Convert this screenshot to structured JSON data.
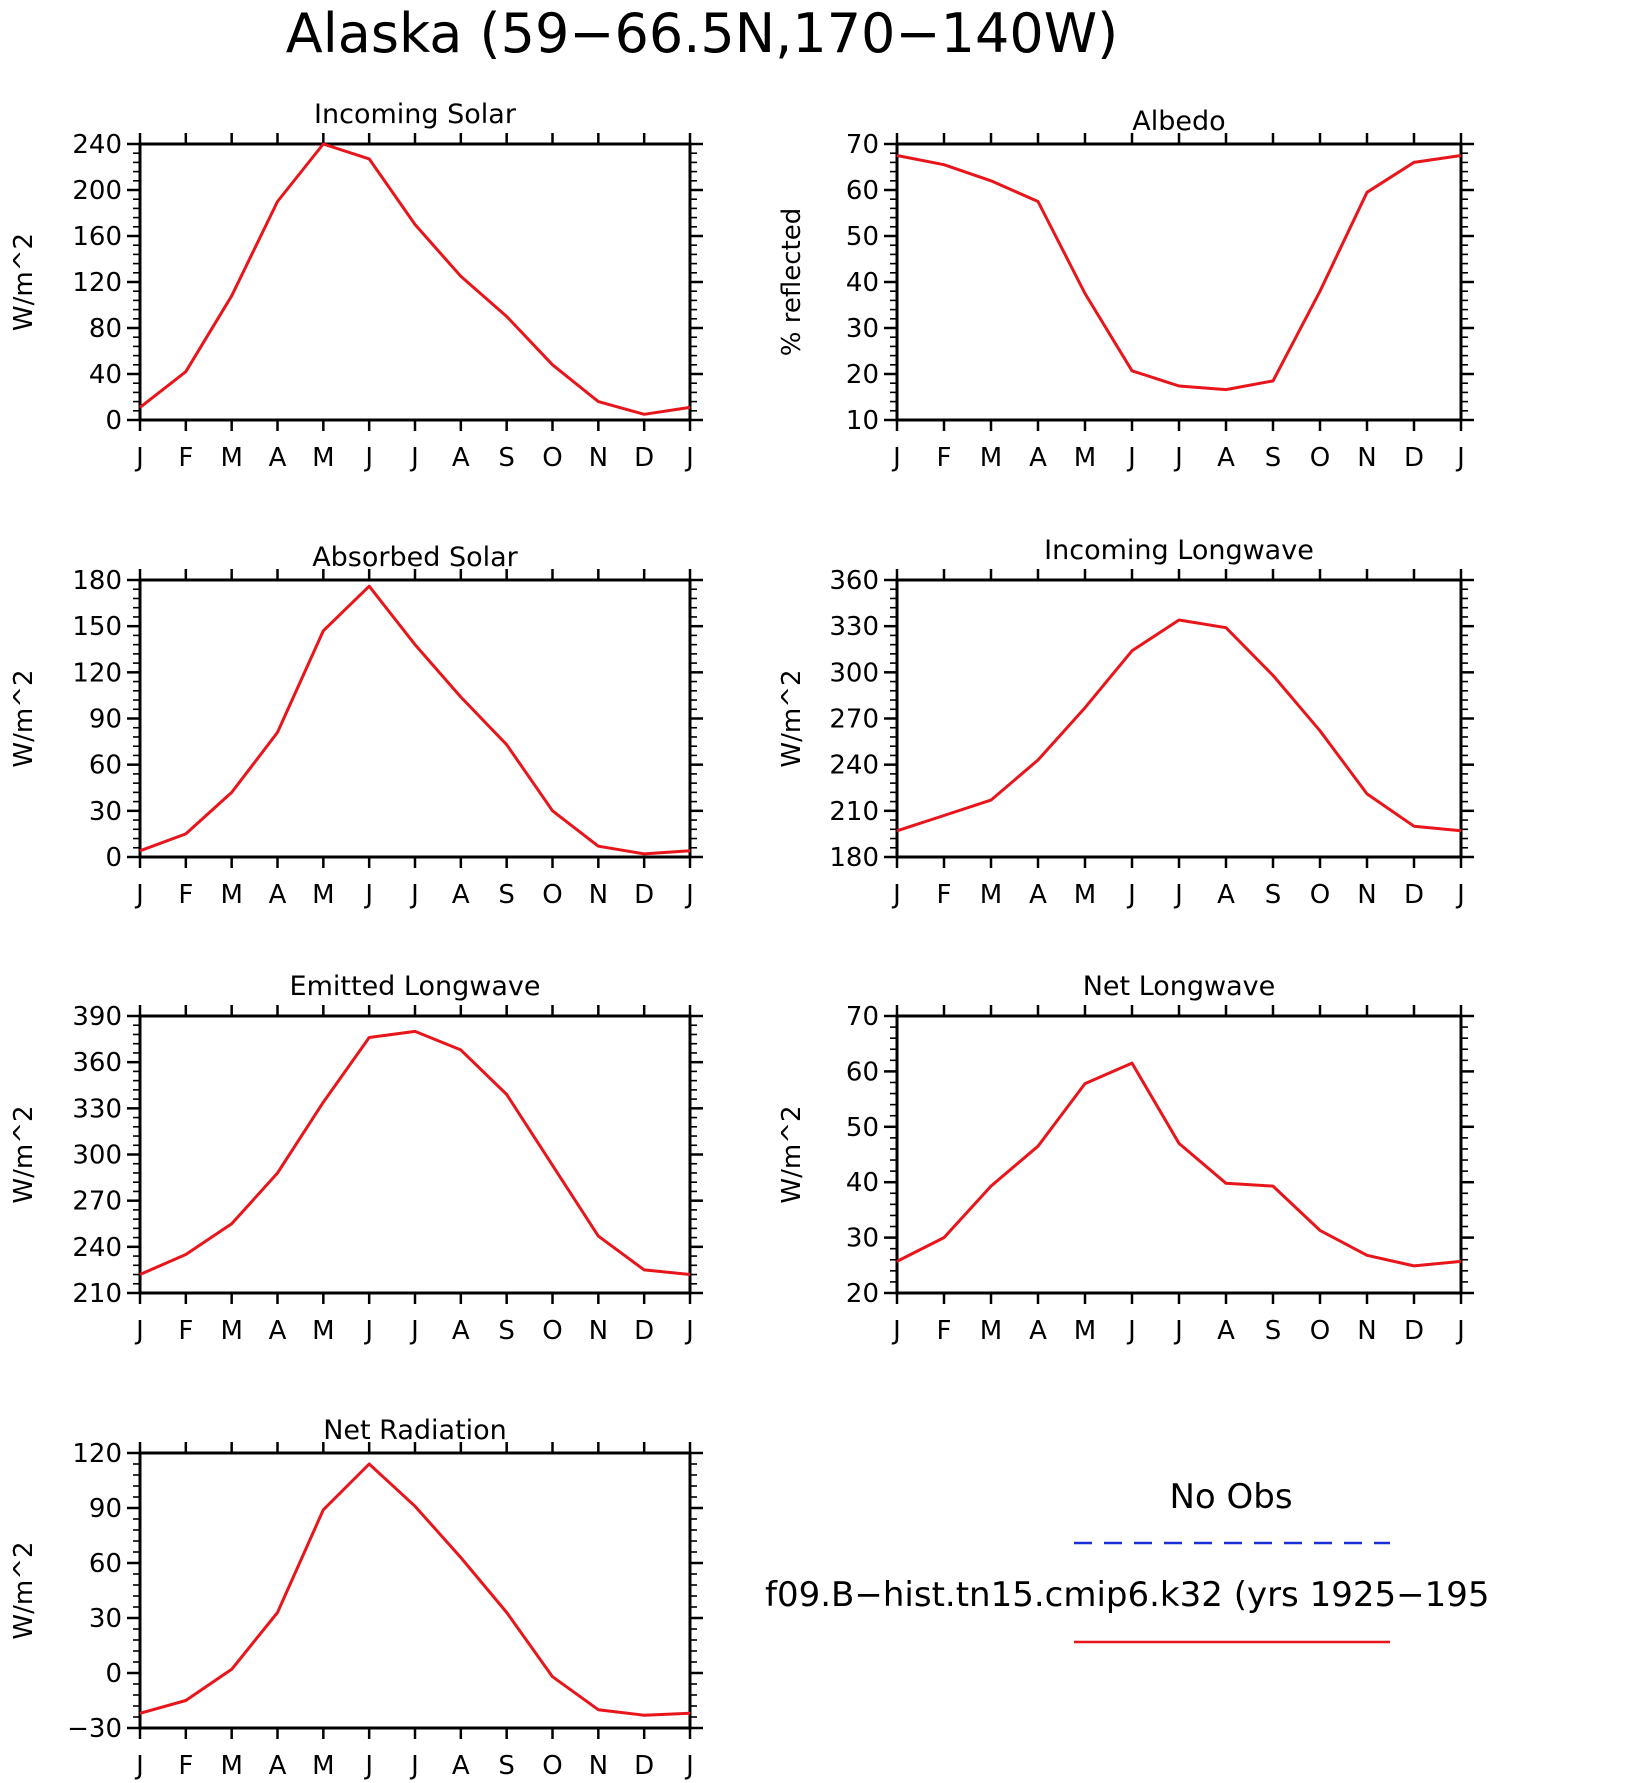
{
  "figure": {
    "title": "Alaska (59−66.5N,170−140W)"
  },
  "colors": {
    "model": "#e8151b",
    "obs": "#1a2fd9",
    "axis": "#000000"
  },
  "legend": {
    "obs_label": "No Obs",
    "model_label": "f09.B−hist.tn15.cmip6.k32 (yrs 1925−195"
  },
  "chart_data": [
    {
      "id": "incoming-solar",
      "type": "line",
      "title": "Incoming Solar",
      "ylabel": "W/m^2",
      "categories": [
        "J",
        "F",
        "M",
        "A",
        "M",
        "J",
        "J",
        "A",
        "S",
        "O",
        "N",
        "D",
        "J"
      ],
      "ylim": [
        0,
        240
      ],
      "yticks": [
        0,
        40,
        80,
        120,
        160,
        200,
        240
      ],
      "series": [
        {
          "values": [
            11,
            42,
            108,
            190,
            240,
            227,
            170,
            125,
            90,
            48,
            16,
            5,
            11
          ]
        }
      ]
    },
    {
      "id": "albedo",
      "type": "line",
      "title": "Albedo",
      "ylabel": "% reflected",
      "categories": [
        "J",
        "F",
        "M",
        "A",
        "M",
        "J",
        "J",
        "A",
        "S",
        "O",
        "N",
        "D",
        "J"
      ],
      "ylim": [
        10,
        70
      ],
      "yticks": [
        10,
        20,
        30,
        40,
        50,
        60,
        70
      ],
      "series": [
        {
          "values": [
            67.5,
            65.5,
            62,
            57.5,
            37.5,
            20.7,
            17.4,
            16.6,
            18.5,
            38,
            59.5,
            66,
            67.5
          ]
        }
      ]
    },
    {
      "id": "absorbed-solar",
      "type": "line",
      "title": "Absorbed Solar",
      "ylabel": "W/m^2",
      "categories": [
        "J",
        "F",
        "M",
        "A",
        "M",
        "J",
        "J",
        "A",
        "S",
        "O",
        "N",
        "D",
        "J"
      ],
      "ylim": [
        0,
        180
      ],
      "yticks": [
        0,
        30,
        60,
        90,
        120,
        150,
        180
      ],
      "series": [
        {
          "values": [
            4,
            15,
            42,
            81,
            147,
            176,
            138,
            104,
            73,
            30,
            7,
            2,
            4
          ]
        }
      ]
    },
    {
      "id": "incoming-longwave",
      "type": "line",
      "title": "Incoming Longwave",
      "ylabel": "W/m^2",
      "categories": [
        "J",
        "F",
        "M",
        "A",
        "M",
        "J",
        "J",
        "A",
        "S",
        "O",
        "N",
        "D",
        "J"
      ],
      "ylim": [
        180,
        360
      ],
      "yticks": [
        180,
        210,
        240,
        270,
        300,
        330,
        360
      ],
      "series": [
        {
          "values": [
            197,
            207,
            217,
            243,
            277,
            314,
            334,
            329,
            298,
            262,
            221,
            200,
            197
          ]
        }
      ]
    },
    {
      "id": "emitted-longwave",
      "type": "line",
      "title": "Emitted Longwave",
      "ylabel": "W/m^2",
      "categories": [
        "J",
        "F",
        "M",
        "A",
        "M",
        "J",
        "J",
        "A",
        "S",
        "O",
        "N",
        "D",
        "J"
      ],
      "ylim": [
        210,
        390
      ],
      "yticks": [
        210,
        240,
        270,
        300,
        330,
        360,
        390
      ],
      "series": [
        {
          "values": [
            222,
            235,
            255,
            288,
            334,
            376,
            380,
            368,
            339,
            293,
            247,
            225,
            222
          ]
        }
      ]
    },
    {
      "id": "net-longwave",
      "type": "line",
      "title": "Net Longwave",
      "ylabel": "W/m^2",
      "categories": [
        "J",
        "F",
        "M",
        "A",
        "M",
        "J",
        "J",
        "A",
        "S",
        "O",
        "N",
        "D",
        "J"
      ],
      "ylim": [
        20,
        70
      ],
      "yticks": [
        20,
        30,
        40,
        50,
        60,
        70
      ],
      "series": [
        {
          "values": [
            25.7,
            30,
            39.3,
            46.5,
            57.8,
            61.5,
            47,
            39.8,
            39.3,
            31.3,
            26.8,
            24.9,
            25.7
          ]
        }
      ]
    },
    {
      "id": "net-radiation",
      "type": "line",
      "title": "Net Radiation",
      "ylabel": "W/m^2",
      "categories": [
        "J",
        "F",
        "M",
        "A",
        "M",
        "J",
        "J",
        "A",
        "S",
        "O",
        "N",
        "D",
        "J"
      ],
      "ylim": [
        -30,
        120
      ],
      "yticks": [
        -30,
        0,
        30,
        60,
        90,
        120
      ],
      "series": [
        {
          "values": [
            -22,
            -15,
            2,
            33,
            89,
            114,
            91,
            63,
            33,
            -2,
            -20,
            -23,
            -22
          ]
        }
      ]
    }
  ]
}
